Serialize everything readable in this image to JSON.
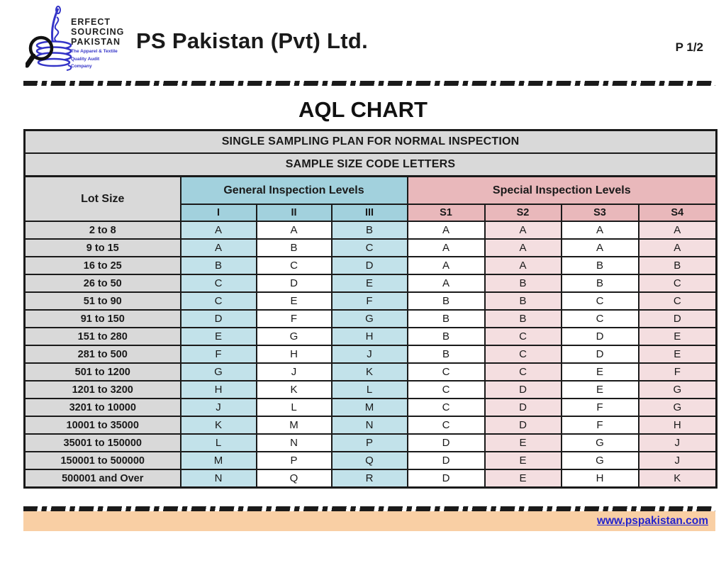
{
  "header": {
    "company_name": "PS Pakistan (Pvt) Ltd.",
    "page_label": "P 1/2",
    "logo": {
      "line1": "ERFECT",
      "line2": "SOURCING",
      "line3": "PAKISTAN",
      "tagline1": "The Apparel & Textile",
      "tagline2": "Quality Audit",
      "tagline3": "Company"
    }
  },
  "title": "AQL CHART",
  "table": {
    "banner1": "SINGLE SAMPLING PLAN FOR NORMAL INSPECTION",
    "banner2": "SAMPLE SIZE CODE LETTERS",
    "lot_size_header": "Lot Size",
    "general_header": "General Inspection  Levels",
    "special_header": "Special Inspection Levels",
    "general_columns": [
      "I",
      "II",
      "III"
    ],
    "special_columns": [
      "S1",
      "S2",
      "S3",
      "S4"
    ],
    "rows": [
      {
        "lot": "2 to 8",
        "values": [
          "A",
          "A",
          "B",
          "A",
          "A",
          "A",
          "A"
        ]
      },
      {
        "lot": "9 to 15",
        "values": [
          "A",
          "B",
          "C",
          "A",
          "A",
          "A",
          "A"
        ]
      },
      {
        "lot": "16 to 25",
        "values": [
          "B",
          "C",
          "D",
          "A",
          "A",
          "B",
          "B"
        ]
      },
      {
        "lot": "26 to 50",
        "values": [
          "C",
          "D",
          "E",
          "A",
          "B",
          "B",
          "C"
        ]
      },
      {
        "lot": "51 to 90",
        "values": [
          "C",
          "E",
          "F",
          "B",
          "B",
          "C",
          "C"
        ]
      },
      {
        "lot": "91 to 150",
        "values": [
          "D",
          "F",
          "G",
          "B",
          "B",
          "C",
          "D"
        ]
      },
      {
        "lot": "151 to 280",
        "values": [
          "E",
          "G",
          "H",
          "B",
          "C",
          "D",
          "E"
        ]
      },
      {
        "lot": "281 to 500",
        "values": [
          "F",
          "H",
          "J",
          "B",
          "C",
          "D",
          "E"
        ]
      },
      {
        "lot": "501 to 1200",
        "values": [
          "G",
          "J",
          "K",
          "C",
          "C",
          "E",
          "F"
        ]
      },
      {
        "lot": "1201 to 3200",
        "values": [
          "H",
          "K",
          "L",
          "C",
          "D",
          "E",
          "G"
        ]
      },
      {
        "lot": "3201 to 10000",
        "values": [
          "J",
          "L",
          "M",
          "C",
          "D",
          "F",
          "G"
        ]
      },
      {
        "lot": "10001 to 35000",
        "values": [
          "K",
          "M",
          "N",
          "C",
          "D",
          "F",
          "H"
        ]
      },
      {
        "lot": "35001 to 150000",
        "values": [
          "L",
          "N",
          "P",
          "D",
          "E",
          "G",
          "J"
        ]
      },
      {
        "lot": "150001 to 500000",
        "values": [
          "M",
          "P",
          "Q",
          "D",
          "E",
          "G",
          "J"
        ]
      },
      {
        "lot": "500001 and Over",
        "values": [
          "N",
          "Q",
          "R",
          "D",
          "E",
          "H",
          "K"
        ]
      }
    ]
  },
  "footer": {
    "link": "www.pspakistan.com"
  },
  "colors": {
    "banner_gray": "#d9d9d9",
    "teal_header": "#a2d1dd",
    "teal_cell": "#c2e2ea",
    "pink_header": "#e9b8bb",
    "pink_cell": "#f4dee0",
    "footer_band": "#f9cfa4",
    "link_blue": "#2424cc",
    "border_black": "#1a1a1a"
  }
}
